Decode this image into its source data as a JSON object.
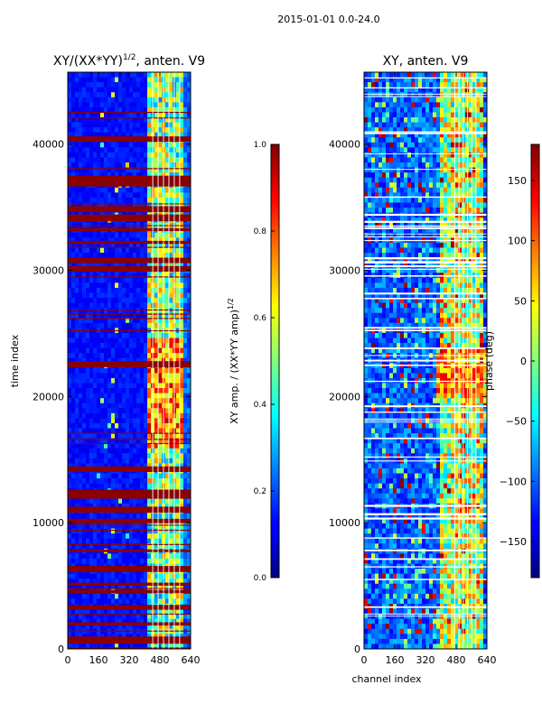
{
  "figure_title": "2015-01-01 0.0-24.0",
  "chart_data": [
    {
      "type": "heatmap",
      "title": "XY/(XX*YY)^1/2, anten. V9",
      "title_main": "XY/(XX*YY)",
      "title_exp": "1/2",
      "title_suffix": ", anten. V9",
      "xlabel": "",
      "ylabel": "time index",
      "xlim": [
        0,
        640
      ],
      "ylim": [
        0,
        45700
      ],
      "xticks": [
        0,
        160,
        320,
        480,
        640
      ],
      "yticks": [
        0,
        10000,
        20000,
        30000,
        40000
      ],
      "colorbar": {
        "label": "XY amp. / (XX*YY amp)^1/2",
        "label_main": "XY amp. / (XX*YY amp)",
        "label_exp": "1/2",
        "range": [
          0.0,
          1.0
        ],
        "ticks": [
          "0.0",
          "0.2",
          "0.4",
          "0.6",
          "0.8",
          "1.0"
        ],
        "colormap": "jet"
      }
    },
    {
      "type": "heatmap",
      "title": "XY, anten. V9",
      "xlabel": "channel index",
      "ylabel": "",
      "xlim": [
        0,
        640
      ],
      "ylim": [
        0,
        45700
      ],
      "xticks": [
        0,
        160,
        320,
        480,
        640
      ],
      "yticks": [
        0,
        10000,
        20000,
        30000,
        40000
      ],
      "colorbar": {
        "label": "phase (deg)",
        "range": [
          -180,
          180
        ],
        "ticks": [
          "−150",
          "−100",
          "−50",
          "0",
          "50",
          "100",
          "150"
        ],
        "tick_values": [
          -150,
          -100,
          -50,
          0,
          50,
          100,
          150
        ],
        "colormap": "jet"
      }
    }
  ]
}
